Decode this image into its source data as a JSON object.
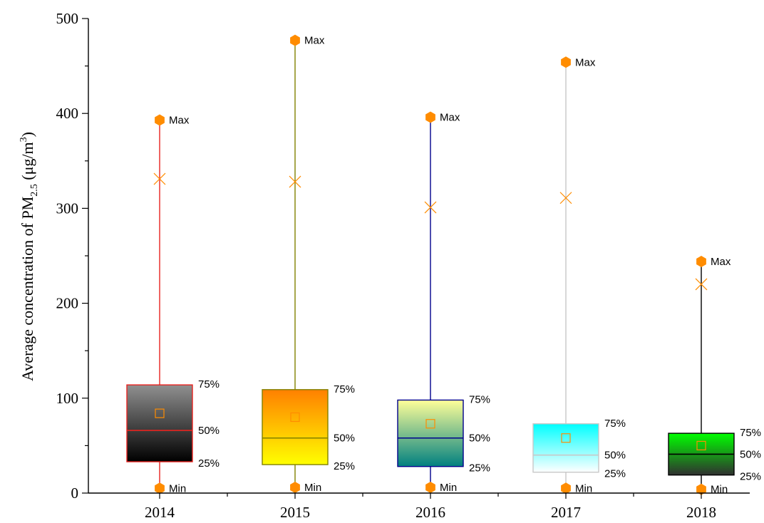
{
  "chart_data": {
    "type": "box",
    "ylabel": {
      "prefix": "Average concentration of PM",
      "subscript": "2.5",
      "unit_open": " (μg/m",
      "superscript": "3",
      "unit_close": ")"
    },
    "ylim": [
      0,
      500
    ],
    "y_ticks": [
      "0",
      "100",
      "200",
      "300",
      "400",
      "500"
    ],
    "categories": [
      "2014",
      "2015",
      "2016",
      "2017",
      "2018"
    ],
    "labels": {
      "max": "Max",
      "min": "Min",
      "q3": "75%",
      "median": "50%",
      "q1": "25%"
    },
    "boxes": [
      {
        "category": "2014",
        "min": 5,
        "q1": 33,
        "median": 66,
        "q3": 114,
        "max": 393,
        "mean": 84,
        "p99": 331,
        "color": "#e8231f",
        "fill_top": "#909090",
        "fill_bottom": "#000000"
      },
      {
        "category": "2015",
        "min": 6,
        "q1": 30,
        "median": 58,
        "q3": 109,
        "max": 477,
        "mean": 80,
        "p99": 328,
        "color": "#808000",
        "fill_top": "#ff8000",
        "fill_bottom": "#ffff00"
      },
      {
        "category": "2016",
        "min": 6,
        "q1": 28,
        "median": 58,
        "q3": 98,
        "max": 396,
        "mean": 73,
        "p99": 301,
        "color": "#00008b",
        "fill_top": "#ffff99",
        "fill_bottom": "#008080"
      },
      {
        "category": "2017",
        "min": 5,
        "q1": 22,
        "median": 40,
        "q3": 73,
        "max": 454,
        "mean": 58,
        "p99": 311,
        "color": "#c8c8c8",
        "fill_top": "#00ffff",
        "fill_bottom": "#ffffff"
      },
      {
        "category": "2018",
        "min": 4,
        "q1": 19,
        "median": 41,
        "q3": 63,
        "max": 244,
        "mean": 50,
        "p99": 220,
        "color": "#000000",
        "fill_top": "#00ff00",
        "fill_bottom": "#303030"
      }
    ],
    "marker_color": "#ff8c00",
    "grid": false,
    "legend": "none"
  }
}
